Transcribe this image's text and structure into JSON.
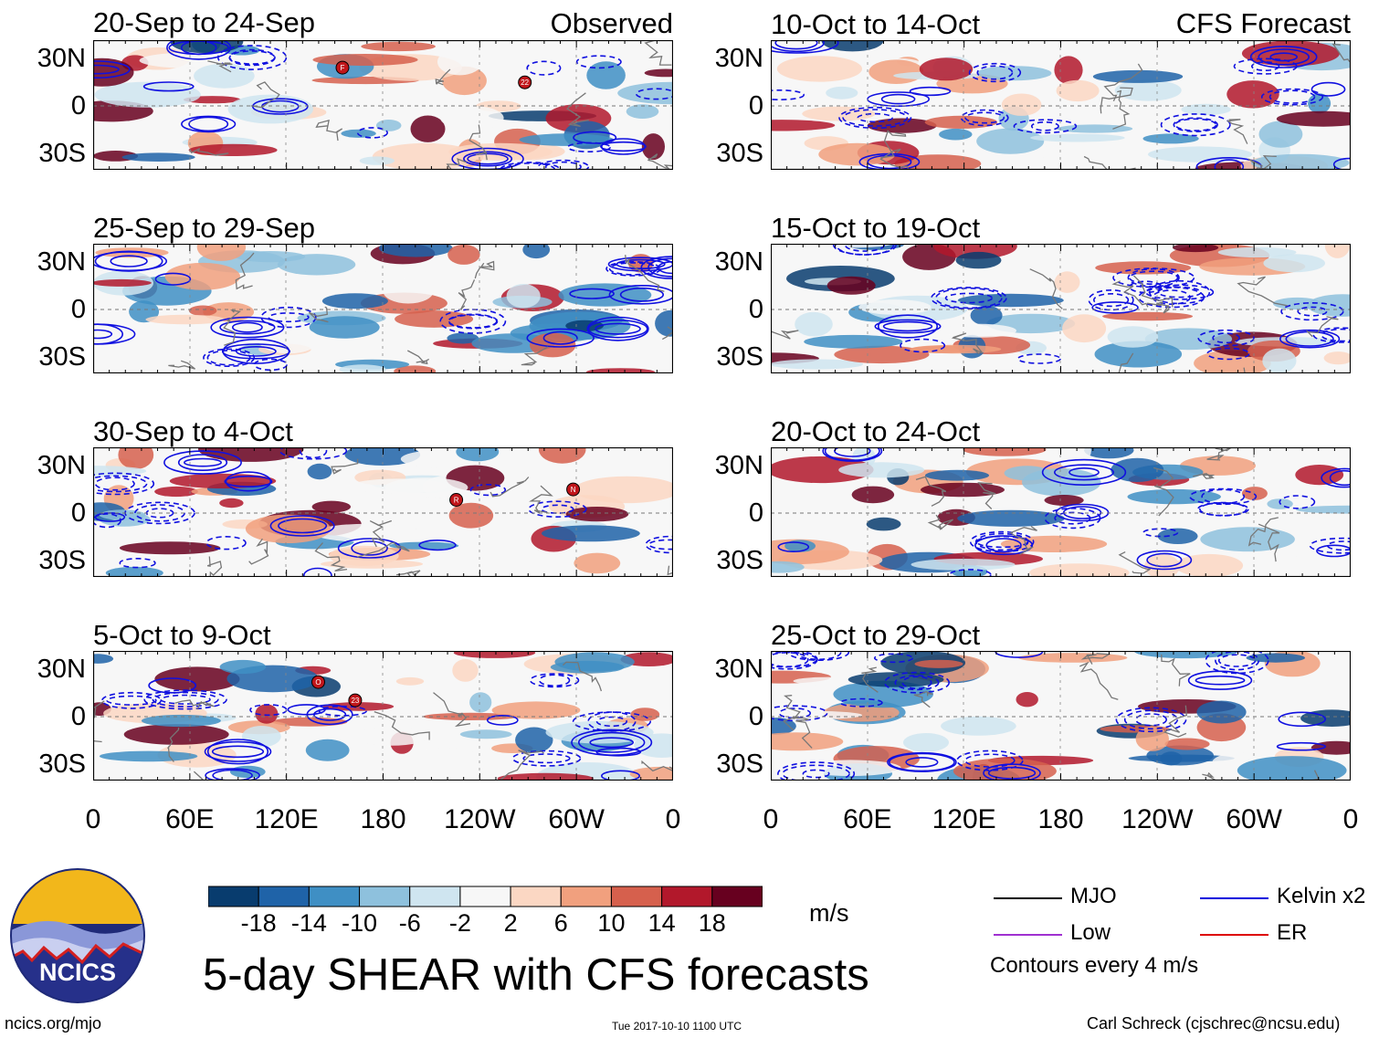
{
  "figure": {
    "title": "5-day SHEAR with CFS forecasts",
    "units": "m/s",
    "website": "ncics.org/mjo",
    "timestamp": "Tue 2017-10-10 1100 UTC",
    "credit": "Carl Schreck (cjschrec@ncsu.edu)",
    "logo_text": "NCICS",
    "contour_note": "Contours every 4 m/s"
  },
  "columns": {
    "left_tag": "Observed",
    "right_tag": "CFS Forecast"
  },
  "chart_data": {
    "type": "heatmap",
    "variable": "vertical wind shear anomaly",
    "units": "m/s",
    "lat_ticks": [
      "30N",
      "0",
      "30S"
    ],
    "lon_ticks": [
      "0",
      "60E",
      "120E",
      "180",
      "120W",
      "60W",
      "0"
    ],
    "panels": [
      {
        "column": "observed",
        "period": "20-Sep to 24-Sep",
        "storm_markers": [
          "22",
          "F"
        ]
      },
      {
        "column": "observed",
        "period": "25-Sep to 29-Sep",
        "storm_markers": []
      },
      {
        "column": "observed",
        "period": "30-Sep to 4-Oct",
        "storm_markers": [
          "R",
          "N"
        ]
      },
      {
        "column": "observed",
        "period": "5-Oct to 9-Oct",
        "storm_markers": [
          "23",
          "O"
        ]
      },
      {
        "column": "forecast",
        "period": "10-Oct to 14-Oct",
        "storm_markers": []
      },
      {
        "column": "forecast",
        "period": "15-Oct to 19-Oct",
        "storm_markers": []
      },
      {
        "column": "forecast",
        "period": "20-Oct to 24-Oct",
        "storm_markers": []
      },
      {
        "column": "forecast",
        "period": "25-Oct to 29-Oct",
        "storm_markers": []
      }
    ],
    "colorbar": {
      "labels": [
        "-18",
        "-14",
        "-10",
        "-6",
        "-2",
        "2",
        "6",
        "10",
        "14",
        "18"
      ],
      "colors": [
        "#083c6e",
        "#1f63a8",
        "#3f8fc4",
        "#8ec1dd",
        "#cfe5f0",
        "#f7f7f7",
        "#fbd7c3",
        "#f1a07e",
        "#d6604d",
        "#b2182b",
        "#67001f"
      ]
    },
    "legend": [
      {
        "label": "MJO",
        "color": "#000000"
      },
      {
        "label": "Kelvin x2",
        "color": "#0000dd"
      },
      {
        "label": "Low",
        "color": "#a030d0"
      },
      {
        "label": "ER",
        "color": "#dd0000"
      }
    ]
  }
}
